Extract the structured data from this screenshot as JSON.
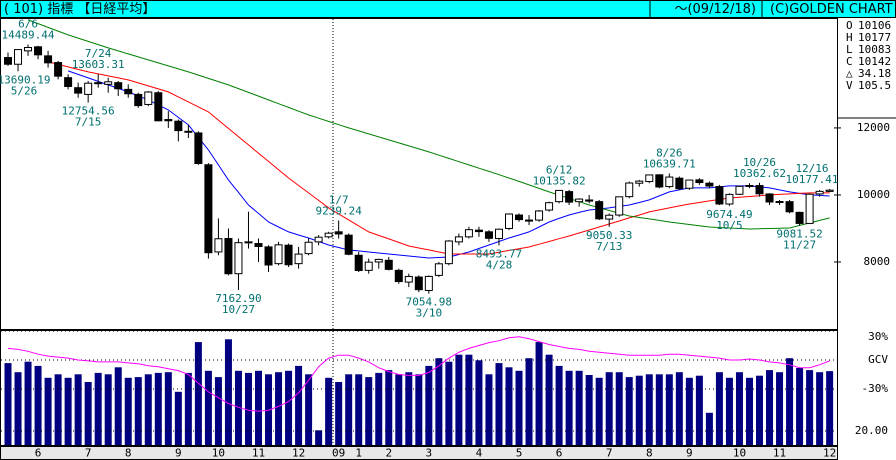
{
  "header": {
    "title": "( 101) 指標 【日経平均】",
    "date": "～(09/12/18)",
    "copyright": "(C)GOLDEN CHART"
  },
  "info": [
    {
      "label": "O",
      "value": 10106
    },
    {
      "label": "H",
      "value": 10177
    },
    {
      "label": "L",
      "value": 10083
    },
    {
      "label": "C",
      "value": 10142
    },
    {
      "label": "△",
      "value": 34.18
    },
    {
      "label": "V",
      "value": 105.5
    }
  ],
  "chart_data": [
    {
      "type": "candlestick",
      "categories": [
        null,
        null,
        null,
        "6",
        null,
        null,
        null,
        null,
        "7",
        null,
        null,
        null,
        "8",
        null,
        null,
        null,
        null,
        "9",
        null,
        null,
        null,
        "10",
        null,
        null,
        null,
        "11",
        null,
        null,
        null,
        "12",
        null,
        null,
        null,
        "09",
        null,
        "1",
        null,
        null,
        "2",
        null,
        null,
        null,
        "3",
        null,
        null,
        null,
        null,
        "4",
        null,
        null,
        null,
        "5",
        null,
        null,
        null,
        "6",
        null,
        null,
        null,
        null,
        "7",
        null,
        null,
        null,
        "8",
        null,
        null,
        null,
        "9",
        null,
        null,
        null,
        null,
        "10",
        null,
        null,
        null,
        "11",
        null,
        null,
        null,
        null,
        "12"
      ],
      "open": [
        14100,
        13900,
        14300,
        14420,
        14150,
        13950,
        13500,
        13200,
        13000,
        13350,
        13300,
        13350,
        13150,
        13000,
        12700,
        13050,
        12250,
        12200,
        11900,
        11850,
        10900,
        8300,
        8700,
        7650,
        8600,
        8550,
        8450,
        7950,
        8500,
        7950,
        8250,
        8600,
        8750,
        8900,
        8800,
        8200,
        7750,
        8000,
        8050,
        7750,
        7400,
        7550,
        7150,
        7600,
        7950,
        8600,
        8750,
        8950,
        8900,
        8700,
        9000,
        9400,
        9250,
        9250,
        9550,
        9800,
        10100,
        9800,
        9850,
        9800,
        9280,
        9400,
        9950,
        10350,
        10400,
        10600,
        10250,
        10500,
        10200,
        10450,
        10350,
        10250,
        9730,
        10020,
        10260,
        10280,
        10030,
        9790,
        9800,
        9480,
        9150,
        10030,
        10106
      ],
      "high": [
        14250,
        14350,
        14489.44,
        14450,
        14300,
        14000,
        13600,
        13350,
        13400,
        13603.31,
        13500,
        13400,
        13300,
        13050,
        13100,
        13100,
        12500,
        12250,
        12100,
        11900,
        10950,
        9300,
        9000,
        8700,
        9500,
        8700,
        8500,
        8600,
        8550,
        8450,
        8700,
        8800,
        8900,
        9239.24,
        8850,
        8300,
        8100,
        8100,
        8150,
        7800,
        7650,
        7600,
        7600,
        8000,
        8650,
        8850,
        9050,
        9050,
        8950,
        9000,
        9450,
        9450,
        9400,
        9550,
        9800,
        10135.82,
        10150,
        9900,
        10000,
        9850,
        9450,
        9950,
        10400,
        10450,
        10600,
        10620,
        10639.71,
        10550,
        10450,
        10500,
        10400,
        10300,
        10050,
        10280,
        10350,
        10362.62,
        10050,
        9850,
        9850,
        9500,
        10050,
        10150,
        10177.41
      ],
      "low": [
        13850,
        13690.19,
        14150,
        14050,
        13800,
        13450,
        13150,
        12900,
        12754.56,
        13200,
        13050,
        12950,
        12900,
        12600,
        12650,
        12200,
        12000,
        11600,
        11700,
        10900,
        8100,
        8200,
        7600,
        7162.9,
        8400,
        8000,
        7700,
        7900,
        7850,
        7800,
        8200,
        8500,
        8700,
        8700,
        8200,
        7700,
        7650,
        7800,
        7750,
        7350,
        7250,
        7100,
        7054.98,
        7550,
        7900,
        8500,
        8700,
        8750,
        8600,
        8493.77,
        8950,
        9200,
        9100,
        9200,
        9500,
        9750,
        9700,
        9650,
        9750,
        9250,
        9050.33,
        9350,
        9900,
        10250,
        10350,
        10200,
        10200,
        10150,
        10150,
        10300,
        10200,
        9700,
        9674.49,
        10000,
        10200,
        9950,
        9700,
        9700,
        9450,
        9081.52,
        9150,
        9950,
        10083
      ],
      "close": [
        13900,
        14338,
        14400,
        14181,
        13942,
        13544,
        13237,
        13039,
        13334,
        13334,
        13376,
        13169,
        13019,
        12666,
        13072,
        12212,
        12214,
        11920,
        11893,
        10938,
        8276,
        8693,
        7649,
        8576,
        8583,
        8462,
        7910,
        8512,
        7917,
        8235,
        8588,
        8739,
        8859,
        8836,
        8230,
        7745,
        7994,
        8076,
        7779,
        7416,
        7568,
        7173,
        7569,
        7945,
        8626,
        8749,
        8964,
        8907,
        8707,
        8977,
        9432,
        9265,
        9225,
        9522,
        9768,
        10135,
        9786,
        9877,
        9816,
        9287,
        9395,
        9944,
        10356,
        10412,
        10597,
        10238,
        10534,
        10187,
        10444,
        10370,
        10265,
        9731,
        10016,
        10257,
        10282,
        10034,
        9789,
        9804,
        9497,
        9150,
        10022,
        10107,
        10142
      ],
      "series": [
        {
          "color": "#0000ff",
          "values": [
            null,
            null,
            null,
            null,
            null,
            null,
            13701,
            13597,
            13492,
            13388,
            13284,
            13180,
            13075,
            12956,
            12836,
            12687,
            12537,
            12314,
            12090,
            11717,
            11343,
            10896,
            10448,
            10075,
            9701,
            9448,
            9194,
            9045,
            8896,
            8806,
            8716,
            8612,
            8507,
            8433,
            8358,
            8329,
            8299,
            8269,
            8239,
            8209,
            8179,
            8149,
            8119,
            8134,
            8149,
            8224,
            8299,
            8403,
            8507,
            8612,
            8716,
            8806,
            8896,
            9045,
            9194,
            9299,
            9403,
            9478,
            9552,
            9582,
            9612,
            9657,
            9701,
            9776,
            9851,
            9971,
            10090,
            10150,
            10209,
            10209,
            10209,
            10239,
            10269,
            10269,
            10269,
            10239,
            10209,
            10150,
            10090,
            10045,
            10000,
            9985,
            9970
          ]
        },
        {
          "color": "#ff0000",
          "values": [
            null,
            null,
            null,
            null,
            13970,
            13896,
            13821,
            13747,
            13672,
            13612,
            13553,
            13493,
            13433,
            13344,
            13254,
            13165,
            13075,
            12926,
            12777,
            12627,
            12478,
            12232,
            11986,
            11739,
            11493,
            11247,
            11000,
            10754,
            10507,
            10283,
            10060,
            9836,
            9612,
            9433,
            9254,
            9075,
            8896,
            8792,
            8687,
            8583,
            8478,
            8418,
            8359,
            8299,
            8239,
            8239,
            8239,
            8239,
            8239,
            8291,
            8344,
            8396,
            8448,
            8530,
            8612,
            8694,
            8776,
            8866,
            8955,
            9045,
            9134,
            9224,
            9314,
            9403,
            9493,
            9553,
            9612,
            9672,
            9731,
            9776,
            9821,
            9865,
            9910,
            9933,
            9955,
            9978,
            10000,
            10015,
            10030,
            10045,
            10060,
            10060,
            10060
          ]
        },
        {
          "color": "#008000",
          "values": [
            null,
            null,
            15224,
            15112,
            15000,
            14888,
            14776,
            14679,
            14582,
            14485,
            14388,
            14299,
            14209,
            14120,
            14030,
            13941,
            13851,
            13762,
            13672,
            13575,
            13478,
            13381,
            13284,
            13172,
            13060,
            12948,
            12836,
            12724,
            12612,
            12500,
            12388,
            12291,
            12194,
            12097,
            12000,
            11911,
            11821,
            11732,
            11642,
            11553,
            11463,
            11374,
            11284,
            11187,
            11090,
            10993,
            10896,
            10799,
            10702,
            10604,
            10507,
            10403,
            10299,
            10194,
            10090,
            9993,
            9896,
            9798,
            9701,
            9619,
            9537,
            9455,
            9373,
            9328,
            9284,
            9239,
            9194,
            9157,
            9119,
            9082,
            9045,
            9030,
            9015,
            9000,
            8985,
            8993,
            9000,
            9008,
            9015,
            9090,
            9164,
            9239,
            9313
          ]
        }
      ],
      "ylim": [
        6000,
        15250
      ],
      "yticks": [
        8000,
        10000,
        12000
      ],
      "high_labels": [
        {
          "date": "6/6",
          "value": 14489.44
        },
        {
          "date": "7/24",
          "value": 13603.31
        },
        {
          "date": "1/7",
          "value": 9239.24
        },
        {
          "date": "6/12",
          "value": 10135.82
        },
        {
          "date": "8/26",
          "value": 10639.71
        },
        {
          "date": "10/26",
          "value": 10362.62
        },
        {
          "date": "12/16",
          "value": 10177.41
        }
      ],
      "low_labels": [
        {
          "date": "5/26",
          "value": 13690.19
        },
        {
          "date": "7/15",
          "value": 12754.56
        },
        {
          "date": "10/27",
          "value": 7162.9,
          "label": "7162.90"
        },
        {
          "date": "3/10",
          "value": 7054.98
        },
        {
          "date": "4/28",
          "value": 8493.77
        },
        {
          "date": "7/13",
          "value": 9050.33
        },
        {
          "date": "10/5",
          "value": 9674.49
        },
        {
          "date": "11/27",
          "value": 9081.52
        }
      ]
    },
    {
      "type": "bar",
      "color": "#000080",
      "values": [
        117,
        104,
        119,
        113,
        96,
        101,
        96,
        101,
        90,
        103,
        101,
        111,
        96,
        97,
        101,
        103,
        104,
        76,
        103,
        147,
        106,
        97,
        151,
        106,
        103,
        106,
        101,
        104,
        106,
        113,
        101,
        21,
        96,
        90,
        101,
        101,
        97,
        103,
        107,
        101,
        104,
        101,
        113,
        124,
        119,
        129,
        129,
        121,
        101,
        117,
        111,
        106,
        124,
        147,
        129,
        113,
        106,
        106,
        100,
        96,
        104,
        104,
        97,
        99,
        101,
        101,
        101,
        104,
        96,
        99,
        46,
        104,
        96,
        104,
        96,
        99,
        107,
        104,
        124,
        110,
        107,
        104,
        105.5
      ],
      "ylim": [
        0,
        160
      ],
      "yticks": [
        {
          "value": 20,
          "label": "20.00"
        }
      ],
      "series": [
        {
          "type": "line",
          "axis": "y2",
          "color": "#ff00ff",
          "values": [
            12,
            11,
            9,
            6,
            4,
            3,
            2,
            0,
            -1,
            -2,
            -2,
            -2,
            -3,
            -4,
            -6,
            -7,
            -9,
            -11,
            -15,
            -24,
            -33,
            -39,
            -45,
            -49,
            -52,
            -53,
            -52,
            -48,
            -43,
            -34,
            -21,
            -7,
            2,
            5,
            5,
            2,
            -2,
            -8,
            -12,
            -15,
            -16,
            -16,
            -13,
            -6,
            2,
            8,
            12,
            15,
            18,
            20,
            23,
            24,
            22,
            19,
            16,
            14,
            12,
            11,
            9,
            8,
            7,
            6,
            5,
            5,
            5,
            5,
            6,
            6,
            5,
            4,
            3,
            2,
            0,
            0,
            1,
            0,
            -2,
            -3,
            -5,
            -8,
            -8,
            -5,
            -1
          ]
        }
      ],
      "y2lim": [
        -88,
        30
      ],
      "y2ticks": [
        {
          "value": 30,
          "label": "30%"
        },
        {
          "value": 0,
          "label": "GCV"
        },
        {
          "value": -30,
          "label": "-30%"
        }
      ]
    }
  ]
}
